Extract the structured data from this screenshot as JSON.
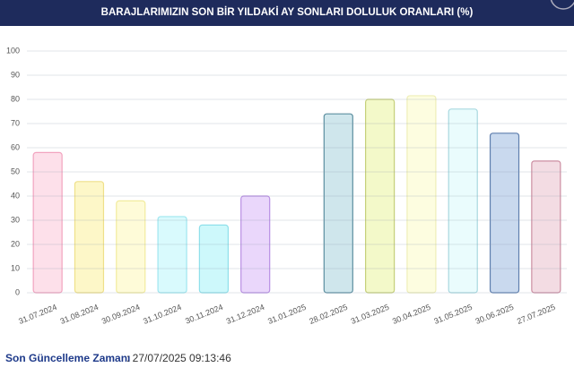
{
  "chart_data": {
    "type": "bar",
    "title": "BARAJLARIMIZIN SON BİR YILDAKİ AY SONLARI DOLULUK ORANLARI (%)",
    "categories": [
      "31.07.2024",
      "31.08.2024",
      "30.09.2024",
      "31.10.2024",
      "30.11.2024",
      "31.12.2024",
      "31.01.2025",
      "28.02.2025",
      "31.03.2025",
      "30.04.2025",
      "31.05.2025",
      "30.06.2025",
      "27.07.2025"
    ],
    "values": [
      58,
      46,
      38,
      31.5,
      28,
      40,
      null,
      74,
      80,
      81.5,
      76,
      66,
      54.5
    ],
    "colors": [
      "#fde0ea",
      "#fdf7c8",
      "#fefbd8",
      "#d9fafd",
      "#cdf8fb",
      "#ead7fb",
      null,
      "#cfe6ec",
      "#f3f9c9",
      "#fdfde0",
      "#eafcfd",
      "#c9d9ee",
      "#f3dce3"
    ],
    "border_colors": [
      "#f2a3bf",
      "#efe08a",
      "#f2ec9e",
      "#9fe6ef",
      "#8fe0ea",
      "#b98fe3",
      null,
      "#5d8fa0",
      "#c6cf7a",
      "#eeeeb8",
      "#a9d9e0",
      "#5f7fae",
      "#cc8ea2"
    ],
    "ylim": [
      0,
      100
    ],
    "yticks": [
      0,
      10,
      20,
      30,
      40,
      50,
      60,
      70,
      80,
      90,
      100
    ],
    "grid": true
  },
  "footer": {
    "label": "Son Güncelleme Zamanı",
    "value": ": 27/07/2025 09:13:46"
  }
}
